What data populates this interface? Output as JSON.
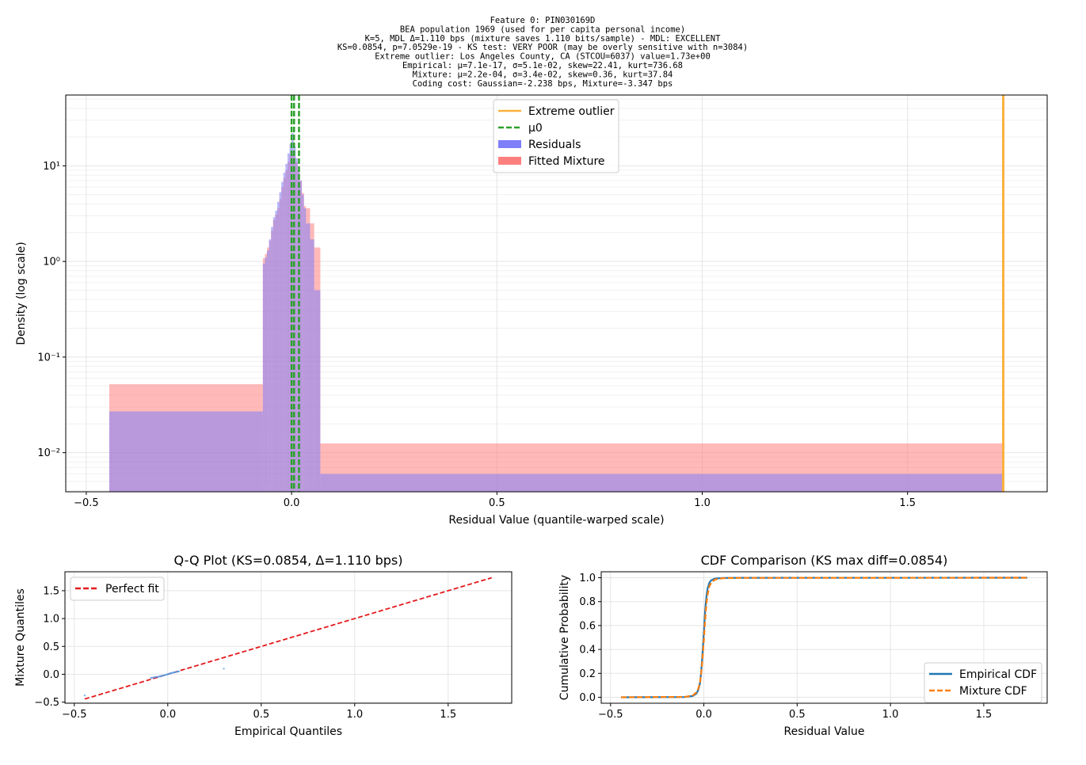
{
  "figure": {
    "title_lines": [
      "Feature 0: PIN030169D",
      "BEA population 1969 (used for per capita personal income)",
      "K=5, MDL Δ=1.110 bps (mixture saves 1.110 bits/sample) - MDL: EXCELLENT",
      "KS=0.0854, p=7.0529e-19 - KS test: VERY POOR (may be overly sensitive with n=3084)",
      "Extreme outlier: Los Angeles County, CA (STCOU=6037) value=1.73e+00",
      "Empirical: μ=7.1e-17, σ=5.1e-02, skew=22.41, kurt=736.68",
      "Mixture:   μ=2.2e-04, σ=3.4e-02, skew=0.36, kurt=37.84",
      "Coding cost: Gaussian=-2.238 bps, Mixture=-3.347 bps"
    ]
  },
  "chart_data": [
    {
      "type": "bar",
      "title": "",
      "xlabel": "Residual Value (quantile-warped scale)",
      "ylabel": "Density (log scale)",
      "yscale": "log",
      "xlim": [
        -0.55,
        1.84
      ],
      "ylim": [
        0.0039,
        55
      ],
      "xticks": [
        -0.5,
        0.0,
        0.5,
        1.0,
        1.5
      ],
      "xtick_labels": [
        "−0.5",
        "0.0",
        "0.5",
        "1.0",
        "1.5"
      ],
      "yticks": [
        0.01,
        0.1,
        1,
        10
      ],
      "ytick_labels": [
        "10⁻²",
        "10⁻¹",
        "10⁰",
        "10¹"
      ],
      "grid": true,
      "legend_position": "top-center",
      "legend": [
        {
          "label": "Extreme outlier",
          "kind": "line",
          "color": "#fbb13c"
        },
        {
          "label": "μ0",
          "kind": "dashed",
          "color": "#2ca02c"
        },
        {
          "label": "Residuals",
          "kind": "patch",
          "color": "#7f7ff9"
        },
        {
          "label": "Fitted Mixture",
          "kind": "patch",
          "color": "#ff7f7f"
        }
      ],
      "series": [
        {
          "name": "Fitted Mixture",
          "color": "#ff7f7f",
          "bins": [
            [
              -0.444,
              -0.07,
              0.052
            ],
            [
              -0.07,
              -0.065,
              1.08
            ],
            [
              -0.065,
              -0.06,
              1.2
            ],
            [
              -0.06,
              -0.055,
              1.4
            ],
            [
              -0.055,
              -0.05,
              1.65
            ],
            [
              -0.05,
              -0.045,
              2.1
            ],
            [
              -0.045,
              -0.04,
              2.7
            ],
            [
              -0.04,
              -0.035,
              3.1
            ],
            [
              -0.035,
              -0.03,
              3.6
            ],
            [
              -0.03,
              -0.025,
              4.5
            ],
            [
              -0.025,
              -0.02,
              6.0
            ],
            [
              -0.02,
              -0.015,
              7.5
            ],
            [
              -0.015,
              -0.01,
              9.0
            ],
            [
              -0.01,
              -0.005,
              11.0
            ],
            [
              -0.005,
              0.0,
              13.0
            ],
            [
              0.0,
              0.005,
              13.5
            ],
            [
              0.005,
              0.01,
              12.5
            ],
            [
              0.01,
              0.015,
              11.0
            ],
            [
              0.015,
              0.02,
              9.0
            ],
            [
              0.02,
              0.025,
              7.0
            ],
            [
              0.025,
              0.03,
              5.2
            ],
            [
              0.03,
              0.035,
              3.8
            ],
            [
              0.035,
              0.045,
              3.6
            ],
            [
              0.045,
              0.055,
              2.5
            ],
            [
              0.055,
              0.07,
              1.4
            ],
            [
              0.07,
              1.733,
              0.0125
            ]
          ]
        },
        {
          "name": "Residuals",
          "color": "#7f7ff9",
          "bins": [
            [
              -0.444,
              -0.07,
              0.027
            ],
            [
              -0.07,
              -0.065,
              0.95
            ],
            [
              -0.065,
              -0.06,
              1.1
            ],
            [
              -0.06,
              -0.055,
              1.3
            ],
            [
              -0.055,
              -0.05,
              1.7
            ],
            [
              -0.05,
              -0.045,
              2.3
            ],
            [
              -0.045,
              -0.04,
              2.9
            ],
            [
              -0.04,
              -0.035,
              3.4
            ],
            [
              -0.035,
              -0.03,
              4.2
            ],
            [
              -0.03,
              -0.025,
              5.3
            ],
            [
              -0.025,
              -0.02,
              6.8
            ],
            [
              -0.02,
              -0.015,
              8.5
            ],
            [
              -0.015,
              -0.01,
              10.5
            ],
            [
              -0.01,
              -0.005,
              13.5
            ],
            [
              -0.005,
              0.0,
              17.0
            ],
            [
              0.0,
              0.005,
              22.0
            ],
            [
              0.005,
              0.01,
              16.0
            ],
            [
              0.01,
              0.015,
              12.0
            ],
            [
              0.015,
              0.02,
              9.0
            ],
            [
              0.02,
              0.025,
              7.0
            ],
            [
              0.025,
              0.03,
              5.0
            ],
            [
              0.03,
              0.035,
              3.6
            ],
            [
              0.035,
              0.045,
              2.5
            ],
            [
              0.045,
              0.055,
              1.7
            ],
            [
              0.055,
              0.07,
              0.5
            ],
            [
              0.07,
              1.733,
              0.006
            ]
          ]
        }
      ],
      "vlines": [
        {
          "name": "Extreme outlier",
          "x": 1.733,
          "color": "#fbb13c",
          "style": "solid"
        },
        {
          "name": "μ0",
          "x": 0.0,
          "color": "#2ca02c",
          "style": "dashed"
        },
        {
          "name": "component",
          "x": 0.006,
          "color": "#2ca02c",
          "style": "dashed"
        },
        {
          "name": "component",
          "x": 0.018,
          "color": "#2ca02c",
          "style": "dashed"
        }
      ]
    },
    {
      "type": "scatter",
      "title": "Q-Q Plot (KS=0.0854, Δ=1.110 bps)",
      "xlabel": "Empirical Quantiles",
      "ylabel": "Mixture Quantiles",
      "xlim": [
        -0.55,
        1.84
      ],
      "ylim": [
        -0.52,
        1.84
      ],
      "xticks": [
        -0.5,
        0.0,
        0.5,
        1.0,
        1.5
      ],
      "xtick_labels": [
        "−0.5",
        "0.0",
        "0.5",
        "1.0",
        "1.5"
      ],
      "yticks": [
        -0.5,
        0.0,
        0.5,
        1.0,
        1.5
      ],
      "ytick_labels": [
        "−0.5",
        "0.0",
        "0.5",
        "1.0",
        "1.5"
      ],
      "grid": true,
      "legend_position": "top-left",
      "legend": [
        {
          "label": "Perfect fit",
          "kind": "dashed",
          "color": "#e41a1c"
        }
      ],
      "reference_line": {
        "name": "Perfect fit",
        "x": [
          -0.444,
          1.733
        ],
        "y": [
          -0.444,
          1.733
        ],
        "color": "#e41a1c"
      },
      "points": [
        [
          -0.444,
          -0.38
        ],
        [
          -0.09,
          -0.065
        ],
        [
          -0.07,
          -0.055
        ],
        [
          -0.05,
          -0.045
        ],
        [
          -0.04,
          -0.035
        ],
        [
          -0.03,
          -0.028
        ],
        [
          -0.02,
          -0.02
        ],
        [
          -0.01,
          -0.01
        ],
        [
          0.0,
          0.0
        ],
        [
          0.01,
          0.012
        ],
        [
          0.02,
          0.022
        ],
        [
          0.03,
          0.03
        ],
        [
          0.04,
          0.038
        ],
        [
          0.05,
          0.045
        ],
        [
          0.06,
          0.052
        ],
        [
          0.3,
          0.1
        ]
      ]
    },
    {
      "type": "line",
      "title": "CDF Comparison (KS max diff=0.0854)",
      "xlabel": "Residual Value",
      "ylabel": "Cumulative Probability",
      "xlim": [
        -0.55,
        1.84
      ],
      "ylim": [
        -0.05,
        1.05
      ],
      "xticks": [
        -0.5,
        0.0,
        0.5,
        1.0,
        1.5
      ],
      "xtick_labels": [
        "−0.5",
        "0.0",
        "0.5",
        "1.0",
        "1.5"
      ],
      "yticks": [
        0.0,
        0.2,
        0.4,
        0.6,
        0.8,
        1.0
      ],
      "ytick_labels": [
        "0.0",
        "0.2",
        "0.4",
        "0.6",
        "0.8",
        "1.0"
      ],
      "grid": true,
      "legend_position": "bottom-right",
      "legend": [
        {
          "label": "Empirical CDF",
          "kind": "line",
          "color": "#1f77b4"
        },
        {
          "label": "Mixture CDF",
          "kind": "dashed",
          "color": "#ff7f0e"
        }
      ],
      "series": [
        {
          "name": "Empirical CDF",
          "color": "#1f77b4",
          "style": "solid",
          "x": [
            -0.444,
            -0.1,
            -0.06,
            -0.04,
            -0.03,
            -0.02,
            -0.015,
            -0.01,
            -0.005,
            0.0,
            0.005,
            0.01,
            0.015,
            0.02,
            0.03,
            0.04,
            0.06,
            0.1,
            0.2,
            1.733
          ],
          "y": [
            0.0,
            0.002,
            0.01,
            0.03,
            0.06,
            0.12,
            0.2,
            0.3,
            0.42,
            0.55,
            0.68,
            0.78,
            0.86,
            0.91,
            0.96,
            0.98,
            0.993,
            0.998,
            0.9995,
            1.0
          ]
        },
        {
          "name": "Mixture CDF",
          "color": "#ff7f0e",
          "style": "dashed",
          "x": [
            -0.444,
            -0.1,
            -0.06,
            -0.04,
            -0.03,
            -0.02,
            -0.015,
            -0.01,
            -0.005,
            0.0,
            0.005,
            0.01,
            0.015,
            0.02,
            0.03,
            0.04,
            0.06,
            0.1,
            0.2,
            1.733
          ],
          "y": [
            0.0,
            0.003,
            0.015,
            0.04,
            0.07,
            0.13,
            0.19,
            0.27,
            0.37,
            0.48,
            0.6,
            0.71,
            0.8,
            0.86,
            0.93,
            0.96,
            0.985,
            0.996,
            0.999,
            1.0
          ]
        }
      ]
    }
  ]
}
